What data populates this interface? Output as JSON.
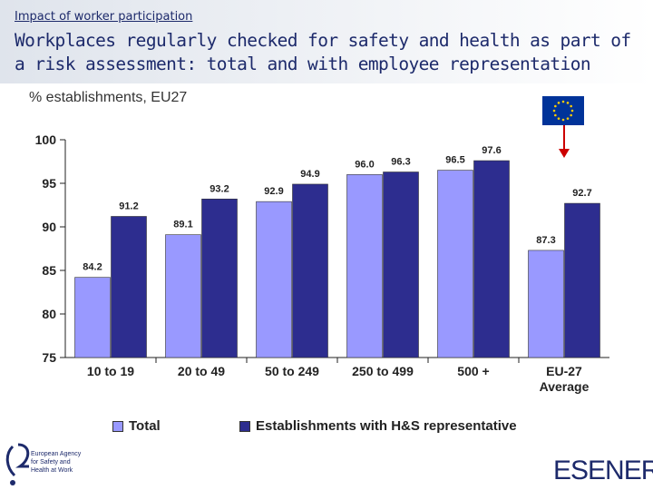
{
  "header": {
    "supertitle": "Impact of worker participation",
    "title": "Workplaces regularly checked for safety and health as part of a risk assessment: total and with employee representation"
  },
  "subtitle": "% establishments, EU27",
  "colors": {
    "total": "#9999ff",
    "representative": "#2d2d8f",
    "axis": "#222222",
    "arrow": "#cc0000",
    "flag": "#003399",
    "flag_star": "#ffcc00"
  },
  "chart_data": {
    "type": "bar",
    "categories": [
      [
        "10 to 19"
      ],
      [
        "20 to 49"
      ],
      [
        "50 to 249"
      ],
      [
        "250 to 499"
      ],
      [
        "500 +"
      ],
      [
        "EU-27",
        "Average"
      ]
    ],
    "series": [
      {
        "name": "Total",
        "values": [
          84.2,
          89.1,
          92.9,
          96.0,
          96.5,
          87.3
        ]
      },
      {
        "name": "Establishments with H&S representative",
        "values": [
          91.2,
          93.2,
          94.9,
          96.3,
          97.6,
          92.7
        ]
      }
    ],
    "labels": [
      [
        "84.2",
        "89.1",
        "92.9",
        "96.0",
        "96.5",
        "87.3"
      ],
      [
        "91.2",
        "93.2",
        "94.9",
        "96.3",
        "97.6",
        "92.7"
      ]
    ],
    "ylim": [
      75,
      100
    ],
    "yticks": [
      100,
      95,
      90,
      85,
      80,
      75
    ],
    "title": "",
    "xlabel": "",
    "ylabel": ""
  },
  "legend": [
    {
      "label": "Total",
      "color": "#9999ff"
    },
    {
      "label": "Establishments with H&S representative",
      "color": "#2d2d8f"
    }
  ],
  "logos": {
    "left_icon": "eu-osha-logo-icon",
    "left_text": "European Agency for Safety and Health at Work",
    "right_text": "ESENER"
  }
}
